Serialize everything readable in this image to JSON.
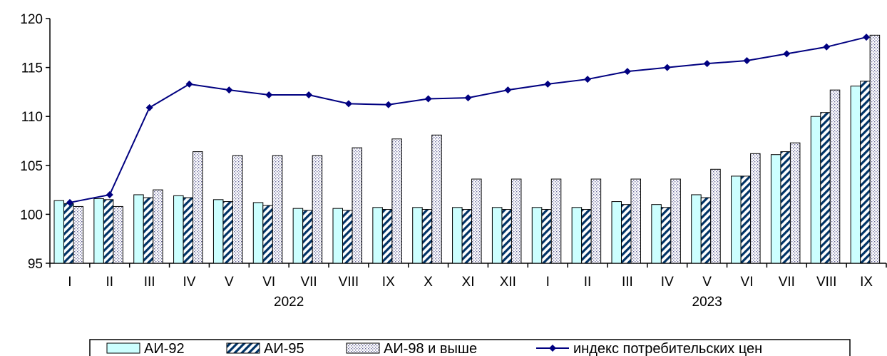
{
  "chart_data": {
    "type": "bar",
    "categories": [
      "I",
      "II",
      "III",
      "IV",
      "V",
      "VI",
      "VII",
      "VIII",
      "IX",
      "X",
      "XI",
      "XII",
      "I",
      "II",
      "III",
      "IV",
      "V",
      "VI",
      "VII",
      "VIII",
      "IX"
    ],
    "year_labels": [
      {
        "label": "2022",
        "start": 0,
        "end": 11
      },
      {
        "label": "2023",
        "start": 12,
        "end": 20
      }
    ],
    "ylim": [
      95,
      120
    ],
    "yticks": [
      95,
      100,
      105,
      110,
      115,
      120
    ],
    "ytick_labels": [
      "95",
      "100",
      "105",
      "110",
      "115",
      "120"
    ],
    "grid": false,
    "legend_position": "bottom",
    "series": [
      {
        "name": "АИ-92",
        "kind": "bar",
        "pattern": "solid",
        "color": "#ccffff",
        "values": [
          101.4,
          101.6,
          102.0,
          101.9,
          101.5,
          101.2,
          100.6,
          100.6,
          100.7,
          100.7,
          100.7,
          100.7,
          100.7,
          100.7,
          101.3,
          101.0,
          102.0,
          103.9,
          106.1,
          110.0,
          113.1
        ]
      },
      {
        "name": "АИ-95",
        "kind": "bar",
        "pattern": "diagonal",
        "color": "#003366",
        "values": [
          101.1,
          101.5,
          101.7,
          101.7,
          101.3,
          100.9,
          100.4,
          100.4,
          100.5,
          100.5,
          100.5,
          100.5,
          100.5,
          100.5,
          101.0,
          100.7,
          101.7,
          103.9,
          106.4,
          110.4,
          113.6
        ]
      },
      {
        "name": "АИ-98 и выше",
        "kind": "bar",
        "pattern": "dotted",
        "color": "#666699",
        "values": [
          100.8,
          100.8,
          102.5,
          106.4,
          106.0,
          106.0,
          106.0,
          106.8,
          107.7,
          108.1,
          103.6,
          103.6,
          103.6,
          103.6,
          103.6,
          103.6,
          104.6,
          106.2,
          107.3,
          112.7,
          118.3
        ]
      },
      {
        "name": "индекс потребительских цен",
        "kind": "line",
        "color": "#000080",
        "values": [
          101.2,
          102.0,
          110.9,
          113.3,
          112.7,
          112.2,
          112.2,
          111.3,
          111.2,
          111.8,
          111.9,
          112.7,
          113.3,
          113.8,
          114.6,
          115.0,
          115.4,
          115.7,
          116.4,
          117.1,
          118.1
        ]
      }
    ]
  }
}
